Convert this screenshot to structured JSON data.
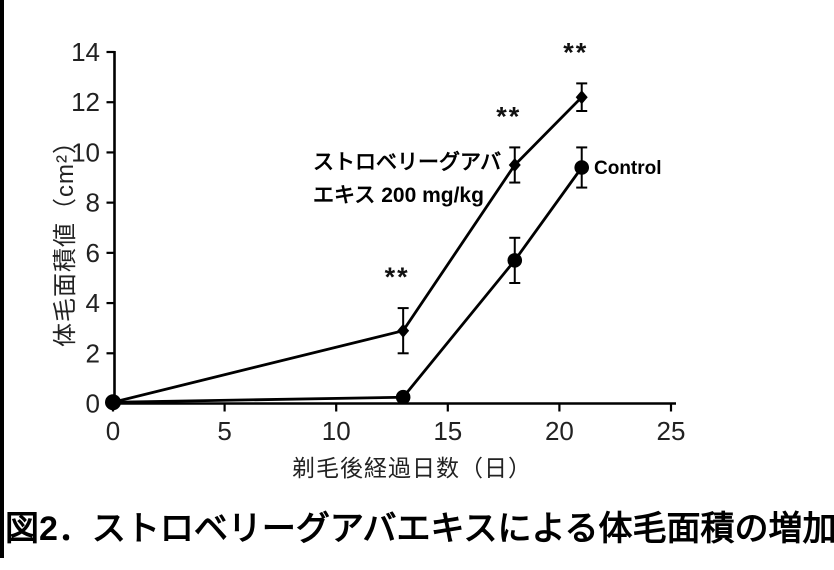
{
  "chart_data": {
    "type": "line",
    "title": "",
    "xlabel": "剃毛後経過日数（日）",
    "ylabel": "体毛面積値（cm²）",
    "xlim": [
      0,
      25
    ],
    "ylim": [
      0,
      14
    ],
    "xticks": [
      0,
      5,
      10,
      15,
      20,
      25
    ],
    "yticks": [
      0,
      2,
      4,
      6,
      8,
      10,
      12,
      14
    ],
    "grid": false,
    "line_color": "#000000",
    "x": [
      0,
      13,
      18,
      21
    ],
    "series": [
      {
        "name": "ストロベリーグアバエキス 200 mg/kg",
        "marker": "diamond",
        "values": [
          0.05,
          2.9,
          9.5,
          12.2
        ],
        "errors": [
          0,
          0.9,
          0.7,
          0.55
        ],
        "significance": [
          "",
          "**",
          "**",
          "**"
        ]
      },
      {
        "name": "Control",
        "marker": "circle",
        "values": [
          0.05,
          0.25,
          5.7,
          9.4
        ],
        "errors": [
          0,
          0,
          0.9,
          0.8
        ],
        "significance": [
          "",
          "",
          "",
          ""
        ]
      }
    ]
  },
  "annotations": {
    "series1_label_line1": "ストロベリーグアバ",
    "series1_label_line2": "エキス 200 mg/kg",
    "control_label": "Control"
  },
  "caption": {
    "text": "図2．ストロベリーグアバエキスによる体毛面積の増加"
  }
}
